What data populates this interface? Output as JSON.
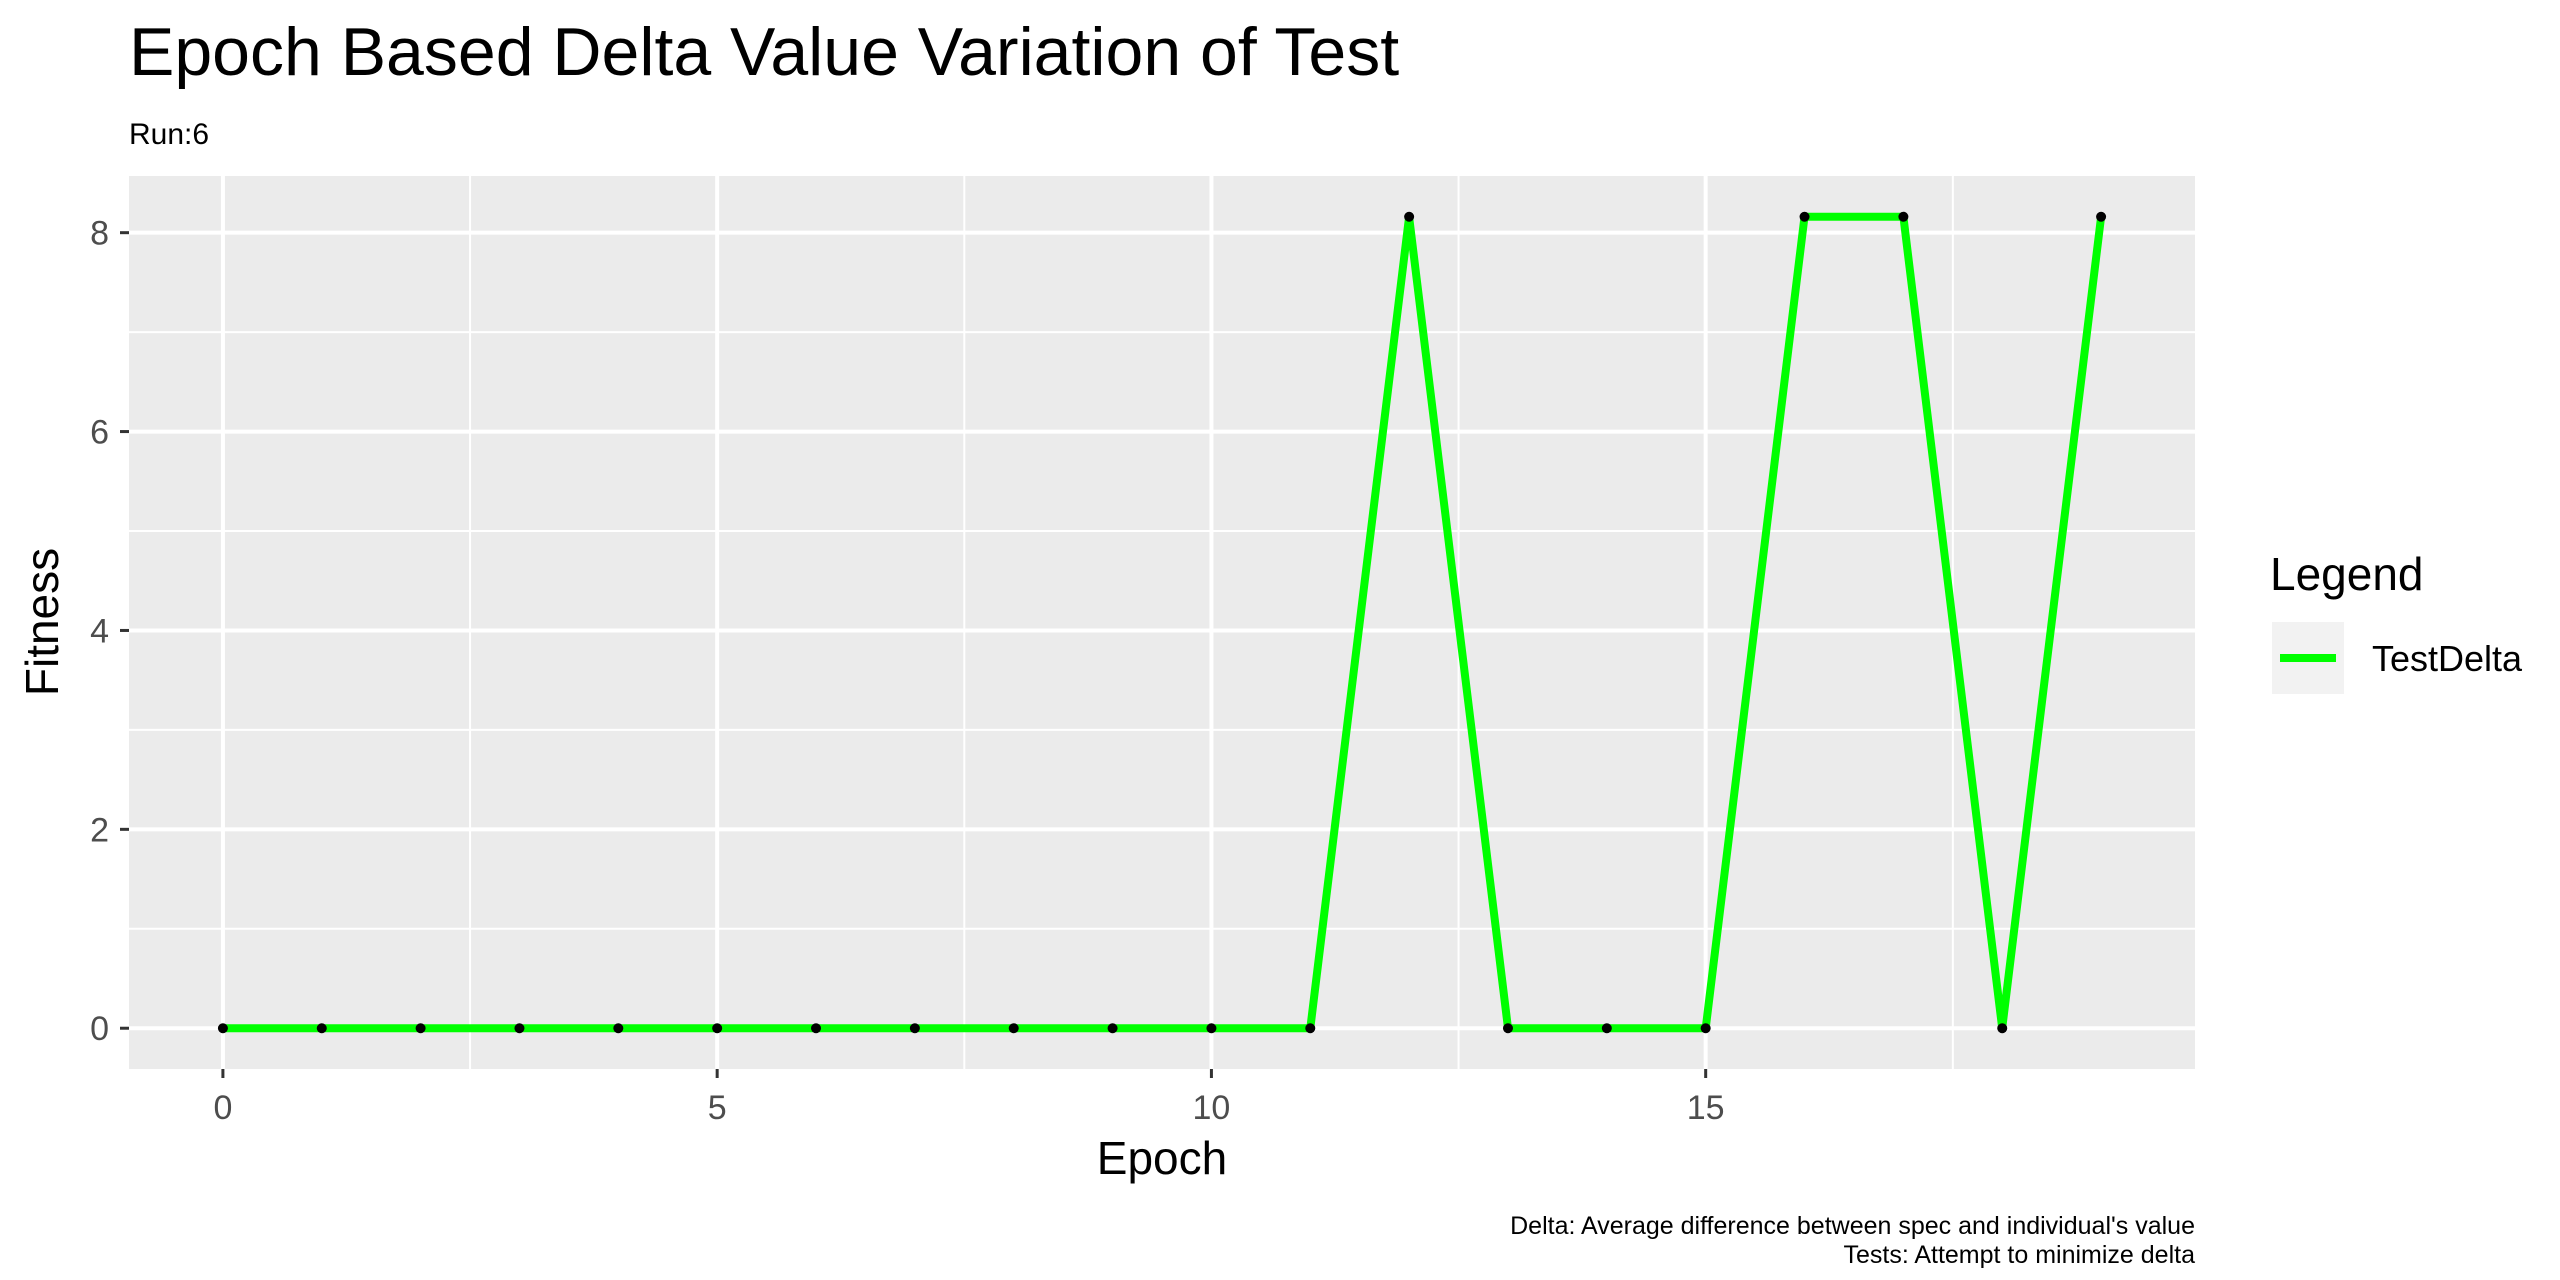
{
  "chart_data": {
    "type": "line",
    "title": "Epoch Based Delta Value Variation of Test",
    "subtitle": "Run:6",
    "xlabel": "Epoch",
    "ylabel": "Fitness",
    "xlim": [
      -0.95,
      19.95
    ],
    "ylim": [
      -0.41,
      8.57
    ],
    "x_ticks": [
      0,
      5,
      10,
      15
    ],
    "x_tick_labels": [
      "0",
      "5",
      "10",
      "15"
    ],
    "x_minor_breaks": [
      2.5,
      7.5,
      12.5,
      17.5
    ],
    "y_ticks": [
      0,
      2,
      4,
      6,
      8
    ],
    "y_tick_labels": [
      "0",
      "2",
      "4",
      "6",
      "8"
    ],
    "y_minor_breaks": [
      1,
      3,
      5,
      7
    ],
    "grid": true,
    "legend": {
      "title": "Legend",
      "position": "right"
    },
    "caption": [
      "Delta: Average difference between spec and individual's value",
      "Tests: Attempt to minimize delta"
    ],
    "colors": {
      "series": "#00ff00",
      "points": "#000000",
      "panel": "#ebebeb",
      "grid": "#ffffff"
    },
    "series": [
      {
        "name": "TestDelta",
        "x": [
          0,
          1,
          2,
          3,
          4,
          5,
          6,
          7,
          8,
          9,
          10,
          11,
          12,
          13,
          14,
          15,
          16,
          17,
          18,
          19
        ],
        "values": [
          0,
          0,
          0,
          0,
          0,
          0,
          0,
          0,
          0,
          0,
          0,
          0,
          8.16,
          0,
          0,
          0,
          8.16,
          8.16,
          0,
          8.16
        ]
      }
    ]
  }
}
